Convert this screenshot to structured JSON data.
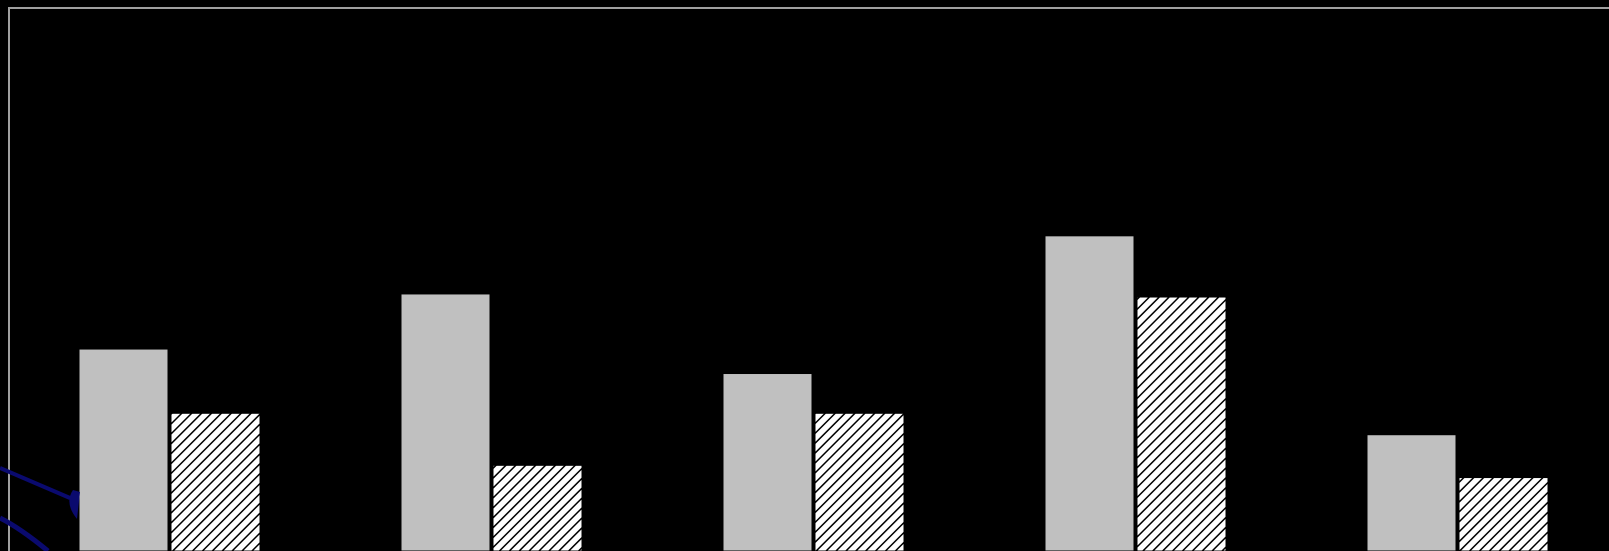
{
  "chart_data": {
    "type": "bar",
    "categories": [
      "",
      "",
      "",
      "",
      ""
    ],
    "series": [
      {
        "values": [
          66,
          84,
          58,
          103,
          38
        ],
        "fill": "#c0c0c0",
        "pattern": "solid"
      },
      {
        "values": [
          45,
          28,
          45,
          83,
          24
        ],
        "fill": "#ffffff",
        "pattern": "diagonal-hatch"
      }
    ],
    "title": "",
    "xlabel": "",
    "ylabel": "",
    "ylim": [
      0,
      175
    ],
    "grid": false,
    "legend": "none"
  },
  "colors": {
    "background": "#000000",
    "frame": "#a0a0a0",
    "bar_outline": "#000000",
    "hatch_ink": "#000000",
    "arrow": "#0a0a6e"
  },
  "decorations": {
    "arrow_icon": "dark-blue-arrow-icon"
  }
}
